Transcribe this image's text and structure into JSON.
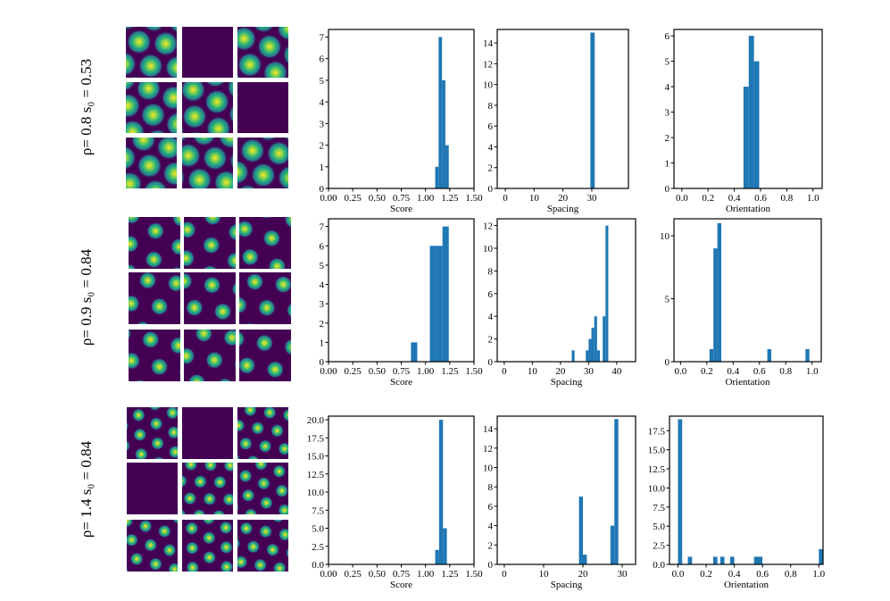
{
  "rows": [
    {
      "label": "ρ= 0.8 s₀ = 0.53"
    },
    {
      "label": "ρ= 0.9 s₀ = 0.84"
    },
    {
      "label": "ρ= 1.4 s₀ = 0.84"
    }
  ],
  "chart_data": [
    {
      "type": "histogram",
      "xlabel": "Score",
      "color": "#1f77b4",
      "bins": [
        1.1,
        1.135,
        1.17,
        1.205,
        1.24
      ],
      "counts": [
        1,
        7,
        5,
        2
      ],
      "xlim": [
        0,
        1.5
      ],
      "ylim": [
        0,
        7.35
      ],
      "xticks": [
        {
          "value": 0,
          "label": "0.00"
        },
        {
          "value": 0.25,
          "label": "0.25"
        },
        {
          "value": 0.5,
          "label": "0.50"
        },
        {
          "value": 0.75,
          "label": "0.75"
        },
        {
          "value": 1,
          "label": "1.00"
        },
        {
          "value": 1.25,
          "label": "1.25"
        },
        {
          "value": 1.5,
          "label": "1.50"
        }
      ],
      "yticks": [
        0,
        1,
        2,
        3,
        4,
        5,
        6,
        7
      ]
    },
    {
      "type": "histogram",
      "xlabel": "Spacing",
      "color": "#1f77b4",
      "bins": [
        29.5,
        31
      ],
      "counts": [
        15
      ],
      "xlim": [
        -2.8,
        42.7
      ],
      "ylim": [
        0,
        15.3
      ],
      "xticks": [
        0,
        10,
        20,
        30
      ],
      "yticks": [
        0,
        2,
        4,
        6,
        8,
        10,
        12,
        14
      ]
    },
    {
      "type": "histogram",
      "xlabel": "Orientation",
      "color": "#1f77b4",
      "bins": [
        0.47,
        0.51,
        0.55,
        0.59
      ],
      "counts": [
        4,
        6,
        5
      ],
      "xlim": [
        -0.06,
        1.07
      ],
      "ylim": [
        0,
        6.25
      ],
      "xticks": [
        {
          "value": 0,
          "label": "0.0"
        },
        {
          "value": 0.2,
          "label": "0.2"
        },
        {
          "value": 0.4,
          "label": "0.4"
        },
        {
          "value": 0.6,
          "label": "0.6"
        },
        {
          "value": 0.8,
          "label": "0.8"
        },
        {
          "value": 1,
          "label": "1.0"
        }
      ],
      "yticks": [
        0,
        1,
        2,
        3,
        4,
        5,
        6
      ]
    },
    {
      "type": "histogram",
      "xlabel": "Score",
      "color": "#1f77b4",
      "bins": [
        0.85,
        0.915,
        0.98,
        1.045,
        1.11,
        1.175,
        1.24
      ],
      "counts": [
        1,
        0,
        0,
        6,
        6,
        7
      ],
      "xlim": [
        0,
        1.5
      ],
      "ylim": [
        0,
        7.4
      ],
      "xticks": [
        {
          "value": 0,
          "label": "0.00"
        },
        {
          "value": 0.25,
          "label": "0.25"
        },
        {
          "value": 0.5,
          "label": "0.50"
        },
        {
          "value": 0.75,
          "label": "0.75"
        },
        {
          "value": 1,
          "label": "1.00"
        },
        {
          "value": 1.25,
          "label": "1.25"
        },
        {
          "value": 1.5,
          "label": "1.50"
        }
      ],
      "yticks": [
        0,
        1,
        2,
        3,
        4,
        5,
        6,
        7
      ]
    },
    {
      "type": "histogram",
      "xlabel": "Spacing",
      "color": "#1f77b4",
      "bins": [
        24,
        25,
        26,
        27,
        28,
        29,
        30,
        31,
        32,
        33,
        34,
        35,
        36,
        37
      ],
      "counts": [
        1,
        0,
        0,
        0,
        0,
        1,
        2,
        3,
        4,
        1,
        0,
        4,
        12
      ],
      "xlim": [
        -2.5,
        46.7
      ],
      "ylim": [
        0,
        12.6
      ],
      "xticks": [
        0,
        10,
        20,
        30,
        40
      ],
      "yticks": [
        0,
        2,
        4,
        6,
        8,
        10,
        12
      ]
    },
    {
      "type": "histogram",
      "xlabel": "Orientation",
      "color": "#1f77b4",
      "bins": [
        0.22,
        0.25,
        0.28,
        0.31,
        0.66,
        0.69,
        0.95,
        0.98
      ],
      "counts": [
        1,
        9,
        11,
        0,
        1,
        0,
        1
      ],
      "xlim": [
        -0.05,
        1.07
      ],
      "ylim": [
        0,
        11.35
      ],
      "xticks": [
        {
          "value": 0,
          "label": "0.0"
        },
        {
          "value": 0.2,
          "label": "0.2"
        },
        {
          "value": 0.4,
          "label": "0.4"
        },
        {
          "value": 0.6,
          "label": "0.6"
        },
        {
          "value": 0.8,
          "label": "0.8"
        },
        {
          "value": 1,
          "label": "1.0"
        }
      ],
      "yticks": [
        0,
        5,
        10
      ]
    },
    {
      "type": "histogram",
      "xlabel": "Score",
      "color": "#1f77b4",
      "bins": [
        1.1,
        1.14,
        1.18,
        1.22
      ],
      "counts": [
        2,
        20,
        5
      ],
      "xlim": [
        0,
        1.5
      ],
      "ylim": [
        0,
        20.5
      ],
      "xticks": [
        {
          "value": 0,
          "label": "0.00"
        },
        {
          "value": 0.25,
          "label": "0.25"
        },
        {
          "value": 0.5,
          "label": "0.50"
        },
        {
          "value": 0.75,
          "label": "0.75"
        },
        {
          "value": 1,
          "label": "1.00"
        },
        {
          "value": 1.25,
          "label": "1.25"
        },
        {
          "value": 1.5,
          "label": "1.50"
        }
      ],
      "yticks": [
        {
          "value": 0,
          "label": "0.0"
        },
        2.5,
        {
          "value": 5,
          "label": "5.0"
        },
        7.5,
        {
          "value": 10,
          "label": "10.0"
        },
        12.5,
        {
          "value": 15,
          "label": "15.0"
        },
        17.5,
        {
          "value": 20,
          "label": "20.0"
        }
      ]
    },
    {
      "type": "histogram",
      "xlabel": "Spacing",
      "color": "#1f77b4",
      "bins": [
        19,
        20,
        21,
        27,
        28,
        29
      ],
      "counts": [
        7,
        1,
        0,
        4,
        15
      ],
      "xlim": [
        -1.8,
        33.4
      ],
      "ylim": [
        0,
        15.3
      ],
      "xticks": [
        0,
        10,
        20,
        30
      ],
      "yticks": [
        0,
        2,
        4,
        6,
        8,
        10,
        12,
        14
      ]
    },
    {
      "type": "histogram",
      "xlabel": "Orientation",
      "color": "#1f77b4",
      "bins": [
        0,
        0.03,
        0.07,
        0.1,
        0.25,
        0.28,
        0.3,
        0.33,
        0.37,
        0.4,
        0.54,
        0.6,
        1.0,
        1.03
      ],
      "counts": [
        19,
        0,
        1,
        0,
        1,
        0,
        1,
        0,
        1,
        0,
        1,
        0,
        2
      ],
      "xlim": [
        -0.06,
        1.03
      ],
      "ylim": [
        0,
        19.4
      ],
      "xticks": [
        {
          "value": 0,
          "label": "0.0"
        },
        {
          "value": 0.2,
          "label": "0.2"
        },
        {
          "value": 0.4,
          "label": "0.4"
        },
        {
          "value": 0.6,
          "label": "0.6"
        },
        {
          "value": 0.8,
          "label": "0.8"
        },
        {
          "value": 1,
          "label": "1.0"
        }
      ],
      "yticks": [
        {
          "value": 0,
          "label": "0.0"
        },
        2.5,
        {
          "value": 5,
          "label": "5.0"
        },
        7.5,
        {
          "value": 10,
          "label": "10.0"
        },
        12.5,
        {
          "value": 15,
          "label": "15.0"
        },
        17.5
      ]
    }
  ]
}
